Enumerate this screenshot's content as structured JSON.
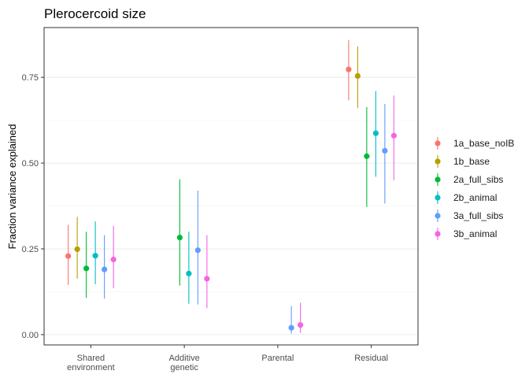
{
  "chart_data": {
    "type": "scatter",
    "title": "Plerocercoid size",
    "xlabel": "",
    "ylabel": "Fraction variance explained",
    "ylim": [
      -0.03,
      0.895
    ],
    "yticks": [
      "0.00",
      "0.25",
      "0.50",
      "0.75"
    ],
    "ytick_values": [
      0,
      0.25,
      0.5,
      0.75
    ],
    "grid": true,
    "legend_position": "right",
    "categories": [
      [
        "Shared",
        "environment"
      ],
      [
        "Additive",
        "genetic"
      ],
      [
        "Parental"
      ],
      [
        "Residual"
      ]
    ],
    "series": [
      {
        "name": "1a_base_noIB",
        "color": "#F8766D",
        "points": [
          {
            "category": 0,
            "y": 0.229,
            "lo": 0.145,
            "hi": 0.32
          },
          {
            "category": 3,
            "y": 0.773,
            "lo": 0.683,
            "hi": 0.858
          }
        ]
      },
      {
        "name": "1b_base",
        "color": "#B79F00",
        "points": [
          {
            "category": 0,
            "y": 0.249,
            "lo": 0.163,
            "hi": 0.343
          },
          {
            "category": 3,
            "y": 0.754,
            "lo": 0.66,
            "hi": 0.84
          }
        ]
      },
      {
        "name": "2a_full_sibs",
        "color": "#00BA38",
        "points": [
          {
            "category": 0,
            "y": 0.193,
            "lo": 0.107,
            "hi": 0.3
          },
          {
            "category": 1,
            "y": 0.283,
            "lo": 0.143,
            "hi": 0.453
          },
          {
            "category": 3,
            "y": 0.52,
            "lo": 0.372,
            "hi": 0.663
          }
        ]
      },
      {
        "name": "2b_animal",
        "color": "#00BFC4",
        "points": [
          {
            "category": 0,
            "y": 0.23,
            "lo": 0.147,
            "hi": 0.33
          },
          {
            "category": 1,
            "y": 0.178,
            "lo": 0.09,
            "hi": 0.3
          },
          {
            "category": 3,
            "y": 0.587,
            "lo": 0.46,
            "hi": 0.71
          }
        ]
      },
      {
        "name": "3a_full_sibs",
        "color": "#619CFF",
        "points": [
          {
            "category": 0,
            "y": 0.19,
            "lo": 0.105,
            "hi": 0.29
          },
          {
            "category": 1,
            "y": 0.246,
            "lo": 0.088,
            "hi": 0.42
          },
          {
            "category": 2,
            "y": 0.02,
            "lo": 0.003,
            "hi": 0.083
          },
          {
            "category": 3,
            "y": 0.536,
            "lo": 0.382,
            "hi": 0.672
          }
        ]
      },
      {
        "name": "3b_animal",
        "color": "#F564E3",
        "points": [
          {
            "category": 0,
            "y": 0.219,
            "lo": 0.135,
            "hi": 0.317
          },
          {
            "category": 1,
            "y": 0.163,
            "lo": 0.077,
            "hi": 0.29
          },
          {
            "category": 2,
            "y": 0.028,
            "lo": 0.005,
            "hi": 0.093
          },
          {
            "category": 3,
            "y": 0.58,
            "lo": 0.45,
            "hi": 0.697
          }
        ]
      }
    ]
  }
}
